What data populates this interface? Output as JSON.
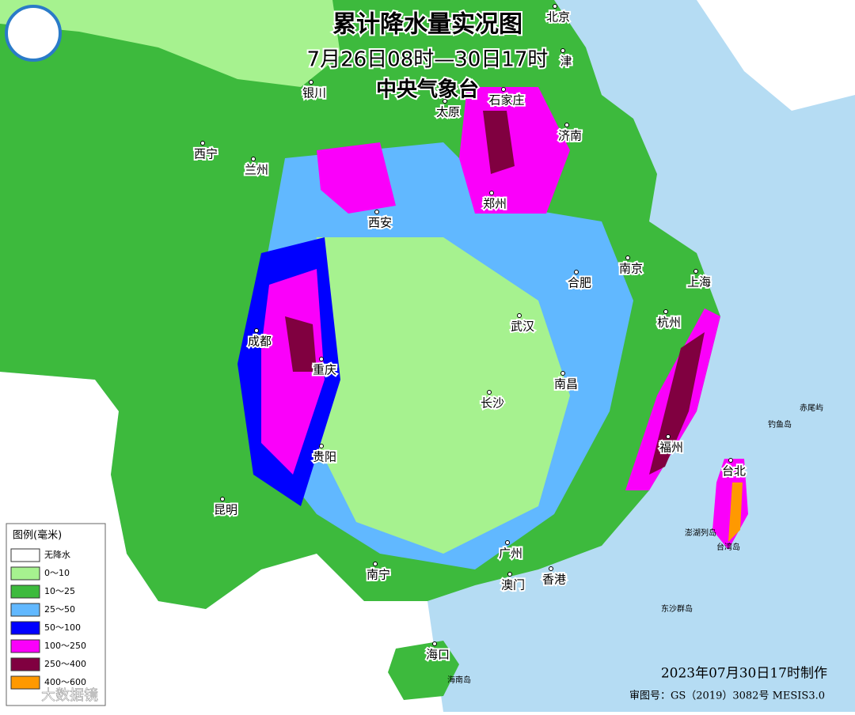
{
  "header": {
    "title": "累计降水量实况图",
    "period": "7月26日08时—30日17时",
    "issuer": "中央气象台"
  },
  "legend": {
    "title": "图例(毫米)",
    "items": [
      {
        "label": "无降水",
        "color": "#ffffff"
      },
      {
        "label": "0～10",
        "color": "#a6f28f"
      },
      {
        "label": "10～25",
        "color": "#3dba3d"
      },
      {
        "label": "25～50",
        "color": "#61b8ff"
      },
      {
        "label": "50～100",
        "color": "#0000ff"
      },
      {
        "label": "100～250",
        "color": "#fa00fa"
      },
      {
        "label": "250～400",
        "color": "#800040"
      },
      {
        "label": "400～600",
        "color": "#ff9900"
      }
    ]
  },
  "cities": [
    "北京",
    "津",
    "石家庄",
    "太原",
    "济南",
    "银川",
    "西宁",
    "兰州",
    "西安",
    "郑州",
    "合肥",
    "南京",
    "上海",
    "杭州",
    "成都",
    "重庆",
    "武汉",
    "长沙",
    "南昌",
    "福州",
    "台北",
    "贵阳",
    "昆明",
    "南宁",
    "广州",
    "澳门",
    "香港",
    "海口"
  ],
  "places": [
    "钓鱼岛",
    "赤尾屿",
    "澎湖列岛",
    "台湾岛",
    "东沙群岛",
    "海南岛"
  ],
  "footer": {
    "made": "2023年07月30日17时制作",
    "approval": "审图号：GS（2019）3082号 MESIS3.0",
    "watermark": "大数据镜"
  }
}
